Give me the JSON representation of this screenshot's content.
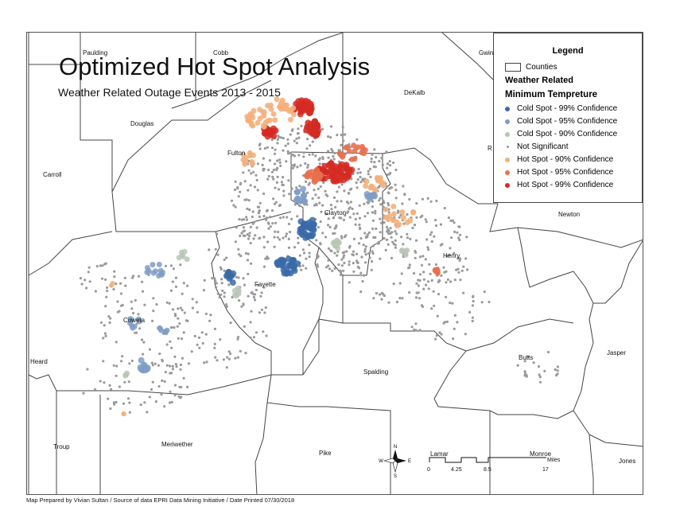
{
  "map": {
    "title": "Optimized Hot Spot Analysis",
    "subtitle": "Weather Related Outage Events 2013 - 2015",
    "credit": "Map Prepared by Vivian Sultan / Source of data EPRI Data Mining Initiative / Date Printed 07/30/2018"
  },
  "counties": {
    "paulding": "Paulding",
    "cobb": "Cobb",
    "gwinnett": "Gwin",
    "douglas": "Douglas",
    "dekalb": "DeKalb",
    "fulton": "Fulton",
    "carroll": "Carroll",
    "clayton": "Clayton",
    "rockdale": "R",
    "newton": "Newton",
    "henry": "Henry",
    "fayette": "Fayette",
    "coweta": "Coweta",
    "heard": "Heard",
    "spalding": "Spalding",
    "butts": "Butts",
    "jasper": "Jasper",
    "troup": "Troup",
    "meriwether": "Meriwether",
    "pike": "Pike",
    "lamar": "Lamar",
    "monroe": "Monroe",
    "jones": "Jones"
  },
  "legend": {
    "title": "Legend",
    "counties_label": "Counties",
    "group_heading": "Weather Related",
    "field_heading": "Minimum Tempreture",
    "items": [
      {
        "label": "Cold Spot - 99% Confidence",
        "color": "#3a6aa8"
      },
      {
        "label": "Cold Spot - 95% Confidence",
        "color": "#7f9cc6"
      },
      {
        "label": "Cold Spot - 90% Confidence",
        "color": "#b7c7b4"
      },
      {
        "label": "Not Significant",
        "color": "#9a9a9a"
      },
      {
        "label": "Hot Spot - 90% Confidence",
        "color": "#f4b07c"
      },
      {
        "label": "Hot Spot - 95% Confidence",
        "color": "#e8704e"
      },
      {
        "label": "Hot Spot - 99% Confidence",
        "color": "#d42a22"
      }
    ]
  },
  "scale_bar": {
    "ticks": [
      "0",
      "4.25",
      "8.5",
      "17"
    ],
    "unit": "Miles"
  },
  "north_arrow": {
    "n": "N",
    "s": "S",
    "e": "E",
    "w": "W"
  }
}
